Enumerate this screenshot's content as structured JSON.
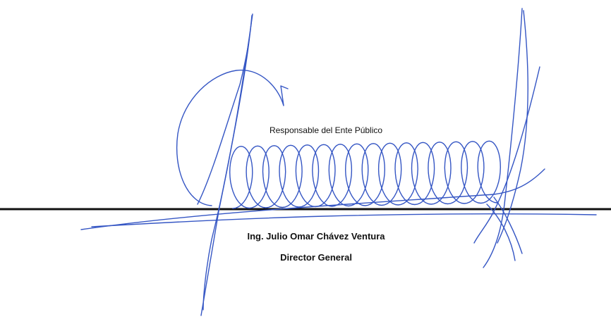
{
  "signature": {
    "role": "Responsable del Ente Público",
    "name": "Ing. Julio Omar Chávez Ventura",
    "position": "Director General"
  }
}
